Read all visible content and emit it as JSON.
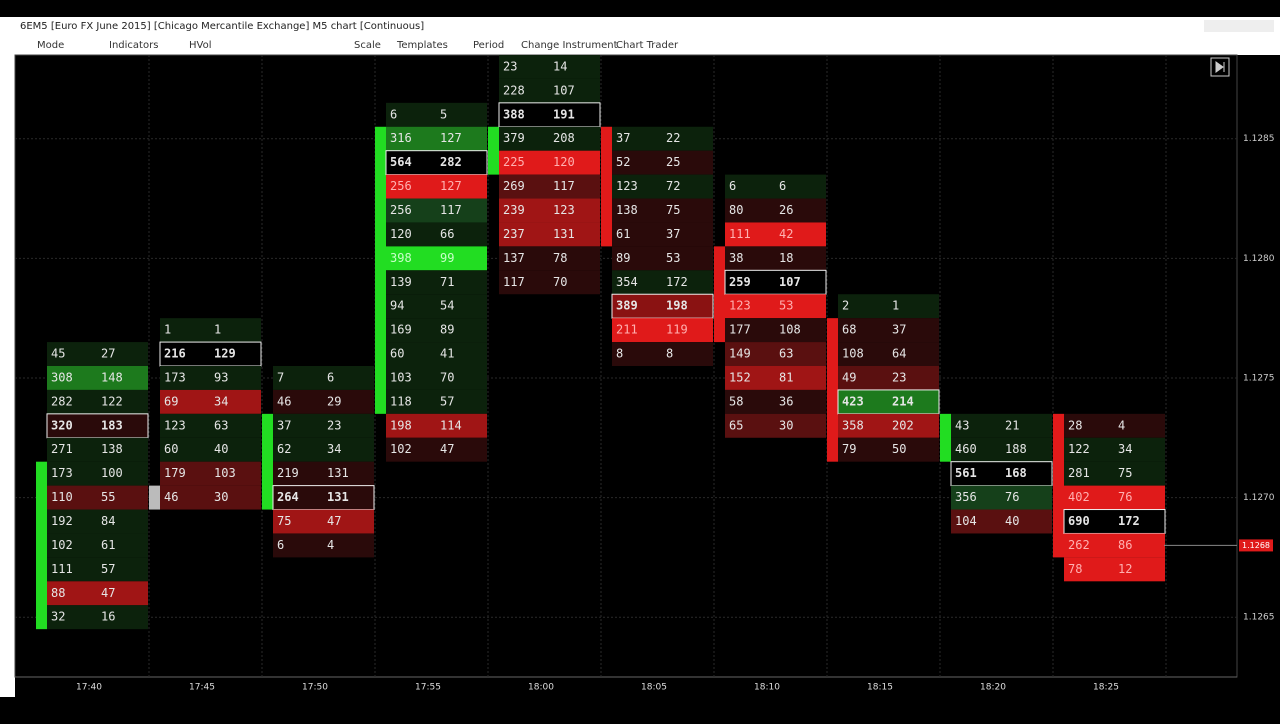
{
  "window": {
    "title": "6EM5 [Euro FX June 2015] [Chicago Mercantile Exchange] M5 chart [Continuous]"
  },
  "toolbar": [
    "Mode",
    "Indicators",
    "HVol",
    "Scale",
    "Templates",
    "Period",
    "Change Instrument",
    "Chart Trader"
  ],
  "chart_data": {
    "type": "footprint",
    "ylim": [
      1.12625,
      1.12885
    ],
    "yticks": [
      1.1285,
      {
        "value": 1.128,
        "label": "1.1280"
      },
      1.1275,
      {
        "value": 1.127,
        "label": "1.1270"
      },
      1.1265
    ],
    "last_price": {
      "value": 1.1268,
      "label": "1.1268"
    },
    "columns": [
      {
        "time": "17:40",
        "high": 1.1276,
        "open": 1.1265,
        "close": 1.1271,
        "box": 3,
        "cells": [
          [
            45,
            27,
            "#0c220c"
          ],
          [
            308,
            148,
            "#1d7a1d"
          ],
          [
            282,
            122,
            "#0c220c"
          ],
          [
            320,
            183,
            "#2a0a0a"
          ],
          [
            271,
            138,
            "#0c220c"
          ],
          [
            173,
            100,
            "#0c220c"
          ],
          [
            110,
            55,
            "#5a1010"
          ],
          [
            192,
            84,
            "#0c220c"
          ],
          [
            102,
            61,
            "#0c220c"
          ],
          [
            111,
            57,
            "#0c220c"
          ],
          [
            88,
            47,
            "#a01515"
          ],
          [
            32,
            16,
            "#0c220c"
          ]
        ]
      },
      {
        "time": "17:45",
        "high": 1.1277,
        "open": 1.127,
        "close": 1.127,
        "box": 1,
        "cells": [
          [
            1,
            1,
            "#0c220c"
          ],
          [
            216,
            129,
            "#000000"
          ],
          [
            173,
            93,
            "#0c220c"
          ],
          [
            69,
            34,
            "#a01515"
          ],
          [
            123,
            63,
            "#0c220c"
          ],
          [
            60,
            40,
            "#0c220c"
          ],
          [
            179,
            103,
            "#5a1010"
          ],
          [
            46,
            30,
            "#5a1010"
          ]
        ]
      },
      {
        "time": "17:50",
        "high": 1.1275,
        "open": 1.127,
        "close": 1.1273,
        "box": 5,
        "cells": [
          [
            7,
            6,
            "#0c220c"
          ],
          [
            46,
            29,
            "#2a0a0a"
          ],
          [
            37,
            23,
            "#0c220c"
          ],
          [
            62,
            34,
            "#0c220c"
          ],
          [
            219,
            131,
            "#2a0a0a"
          ],
          [
            264,
            131,
            "#2a0a0a"
          ],
          [
            75,
            47,
            "#a01515"
          ],
          [
            6,
            4,
            "#2a0a0a"
          ]
        ]
      },
      {
        "time": "17:55",
        "high": 1.1286,
        "open": 1.1274,
        "close": 1.1285,
        "box": 2,
        "cells": [
          [
            6,
            5,
            "#0c220c"
          ],
          [
            316,
            127,
            "#1d7a1d"
          ],
          [
            564,
            282,
            "#000000"
          ],
          [
            256,
            127,
            "#e01a1a"
          ],
          [
            256,
            117,
            "#15401a"
          ],
          [
            120,
            66,
            "#0c220c"
          ],
          [
            398,
            99,
            "#22dd22"
          ],
          [
            139,
            71,
            "#0c220c"
          ],
          [
            94,
            54,
            "#0c220c"
          ],
          [
            169,
            89,
            "#0c220c"
          ],
          [
            60,
            41,
            "#0c220c"
          ],
          [
            103,
            70,
            "#0c220c"
          ],
          [
            118,
            57,
            "#0c220c"
          ],
          [
            198,
            114,
            "#a01515"
          ],
          [
            102,
            47,
            "#2a0a0a"
          ]
        ]
      },
      {
        "time": "18:00",
        "high": 1.1288,
        "open": 1.1284,
        "close": 1.1285,
        "box": 2,
        "cells": [
          [
            23,
            14,
            "#0c220c"
          ],
          [
            228,
            107,
            "#0c220c"
          ],
          [
            388,
            191,
            "#000000"
          ],
          [
            379,
            208,
            "#0c220c"
          ],
          [
            225,
            120,
            "#e01a1a"
          ],
          [
            269,
            117,
            "#5a1010"
          ],
          [
            239,
            123,
            "#a01515"
          ],
          [
            237,
            131,
            "#a01515"
          ],
          [
            137,
            78,
            "#2a0a0a"
          ],
          [
            117,
            70,
            "#2a0a0a"
          ]
        ]
      },
      {
        "time": "18:05",
        "high": 1.1285,
        "open": 1.1285,
        "close": 1.1281,
        "box": 7,
        "cells": [
          [
            37,
            22,
            "#0c220c"
          ],
          [
            52,
            25,
            "#2a0a0a"
          ],
          [
            123,
            72,
            "#0c220c"
          ],
          [
            138,
            75,
            "#2a0a0a"
          ],
          [
            61,
            37,
            "#2a0a0a"
          ],
          [
            89,
            53,
            "#2a0a0a"
          ],
          [
            354,
            172,
            "#0c220c"
          ],
          [
            389,
            198,
            "#8a1212"
          ],
          [
            211,
            119,
            "#e01a1a"
          ],
          [
            8,
            8,
            "#2a0a0a"
          ]
        ]
      },
      {
        "time": "18:10",
        "high": 1.1283,
        "open": 1.128,
        "close": 1.1277,
        "box": 4,
        "cells": [
          [
            6,
            6,
            "#0c220c"
          ],
          [
            80,
            26,
            "#2a0a0a"
          ],
          [
            111,
            42,
            "#e01a1a"
          ],
          [
            38,
            18,
            "#2a0a0a"
          ],
          [
            259,
            107,
            "#000000"
          ],
          [
            123,
            53,
            "#e01a1a"
          ],
          [
            177,
            108,
            "#2a0a0a"
          ],
          [
            149,
            63,
            "#5a1010"
          ],
          [
            152,
            81,
            "#a01515"
          ],
          [
            58,
            36,
            "#2a0a0a"
          ],
          [
            65,
            30,
            "#5a1010"
          ]
        ]
      },
      {
        "time": "18:15",
        "high": 1.1278,
        "open": 1.1277,
        "close": 1.1272,
        "box": 4,
        "cells": [
          [
            2,
            1,
            "#0c220c"
          ],
          [
            68,
            37,
            "#2a0a0a"
          ],
          [
            108,
            64,
            "#2a0a0a"
          ],
          [
            49,
            23,
            "#5a1010"
          ],
          [
            423,
            214,
            "#1d7a1d"
          ],
          [
            358,
            202,
            "#a01515"
          ],
          [
            79,
            50,
            "#2a0a0a"
          ]
        ]
      },
      {
        "time": "18:20",
        "high": 1.1273,
        "open": 1.1272,
        "close": 1.1273,
        "box": 2,
        "cells": [
          [
            43,
            21,
            "#0c220c"
          ],
          [
            460,
            188,
            "#0c220c"
          ],
          [
            561,
            168,
            "#000000"
          ],
          [
            356,
            76,
            "#15401a"
          ],
          [
            104,
            40,
            "#5a1010"
          ]
        ]
      },
      {
        "time": "18:25",
        "high": 1.1273,
        "open": 1.1273,
        "close": 1.1268,
        "box": 4,
        "cells": [
          [
            28,
            4,
            "#2a0a0a"
          ],
          [
            122,
            34,
            "#0c220c"
          ],
          [
            281,
            75,
            "#0c220c"
          ],
          [
            402,
            76,
            "#e01a1a"
          ],
          [
            690,
            172,
            "#000000"
          ],
          [
            262,
            86,
            "#e01a1a"
          ],
          [
            78,
            12,
            "#e01a1a"
          ]
        ]
      }
    ]
  }
}
